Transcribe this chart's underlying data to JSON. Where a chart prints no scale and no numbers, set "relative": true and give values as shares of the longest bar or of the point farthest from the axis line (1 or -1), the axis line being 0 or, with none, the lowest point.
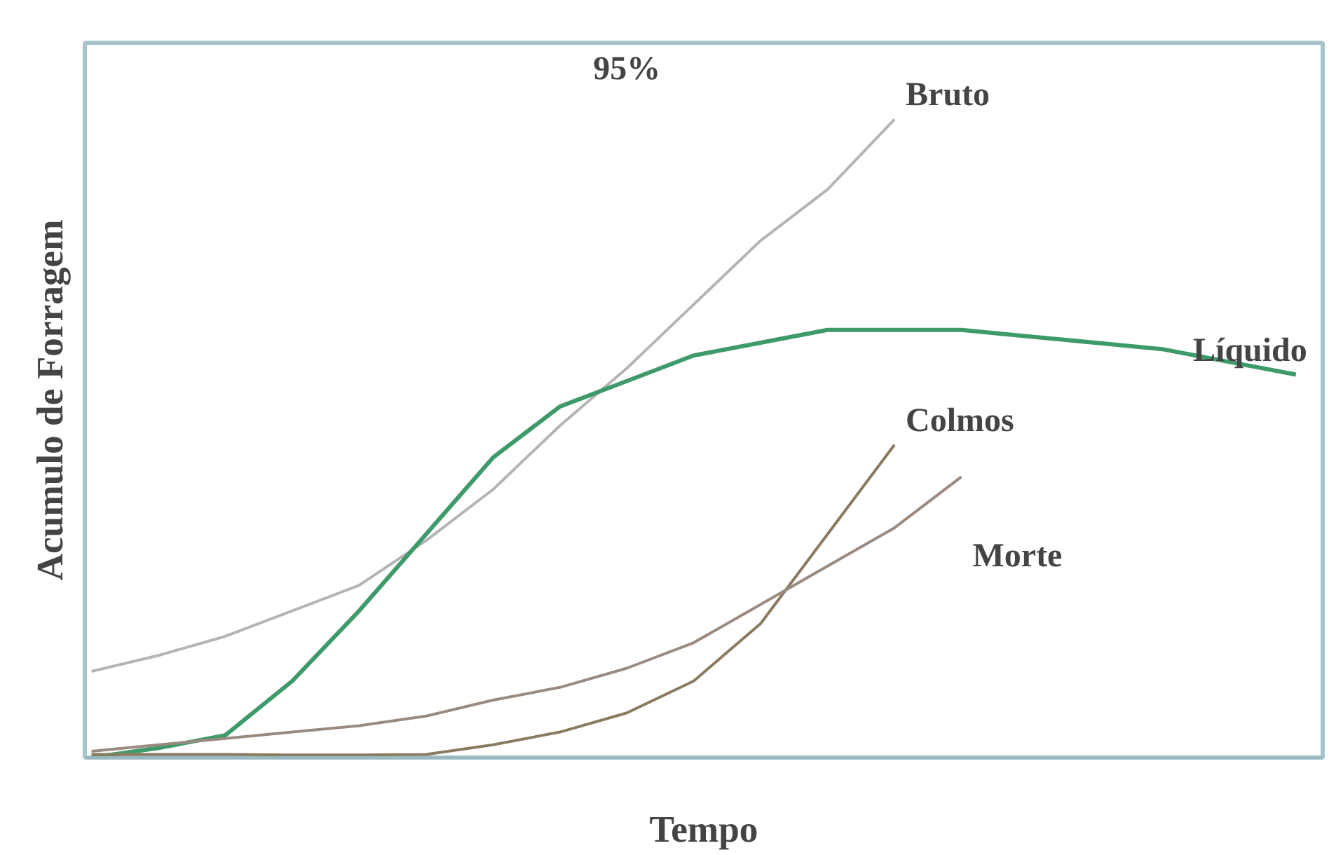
{
  "chart_data": {
    "type": "line",
    "relative": true,
    "xlabel": "Tempo",
    "ylabel": "Acumulo de Forragem",
    "annotations": [
      "95%"
    ],
    "grid": false,
    "marker": "none",
    "line_style": "solid",
    "categories": [
      null,
      null,
      null,
      null,
      null,
      null,
      null,
      null,
      null,
      null,
      null,
      null,
      null,
      null,
      null,
      null,
      null,
      null,
      null
    ],
    "series": [
      {
        "name": "Bruto",
        "color": "#b4b4b4",
        "values": [
          0.135,
          0.16,
          0.19,
          0.23,
          0.27,
          0.34,
          0.42,
          0.52,
          0.61,
          0.71,
          0.81,
          0.89,
          1.0,
          null,
          null,
          null,
          null,
          null,
          null
        ]
      },
      {
        "name": "Líquido",
        "color": "#3f9a6a",
        "values": [
          0,
          0.015,
          0.035,
          0.12,
          0.23,
          0.35,
          0.47,
          0.55,
          0.59,
          0.63,
          0.65,
          0.67,
          0.67,
          0.67,
          0.66,
          0.65,
          0.64,
          0.62,
          0.6
        ]
      },
      {
        "name": "Colmos",
        "color": "#8a7a60",
        "values": [
          0.005,
          0.005,
          0.005,
          0.004,
          0.004,
          0.005,
          0.02,
          0.04,
          0.07,
          0.12,
          0.21,
          0.35,
          0.49,
          null,
          null,
          null,
          null,
          null,
          null
        ]
      },
      {
        "name": "Morte",
        "color": "#9a8a80",
        "values": [
          0.01,
          0.02,
          0.03,
          0.04,
          0.05,
          0.065,
          0.09,
          0.11,
          0.14,
          0.18,
          0.24,
          0.3,
          0.36,
          0.44,
          null,
          null,
          null,
          null,
          null
        ]
      }
    ]
  }
}
